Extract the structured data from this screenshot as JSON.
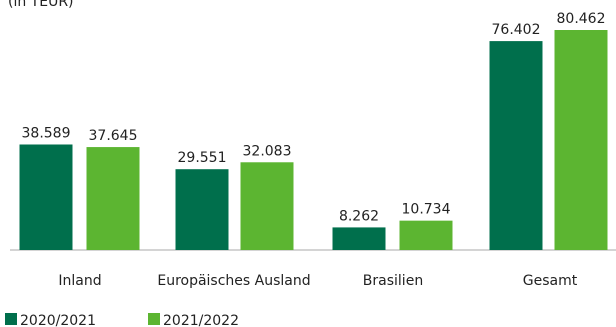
{
  "chart_data": {
    "type": "bar",
    "title": "(in TEUR)",
    "categories": [
      "Inland",
      "Europäisches Ausland",
      "Brasilien",
      "Gesamt"
    ],
    "series": [
      {
        "name": "2020/2021",
        "color": "#006f4c",
        "values": [
          38589,
          29551,
          8262,
          76402
        ],
        "value_labels": [
          "38.589",
          "29.551",
          "8.262",
          "76.402"
        ]
      },
      {
        "name": "2021/2022",
        "color": "#5cb531",
        "values": [
          37645,
          32083,
          10734,
          80462
        ],
        "value_labels": [
          "37.645",
          "32.083",
          "10.734",
          "80.462"
        ]
      }
    ]
  }
}
